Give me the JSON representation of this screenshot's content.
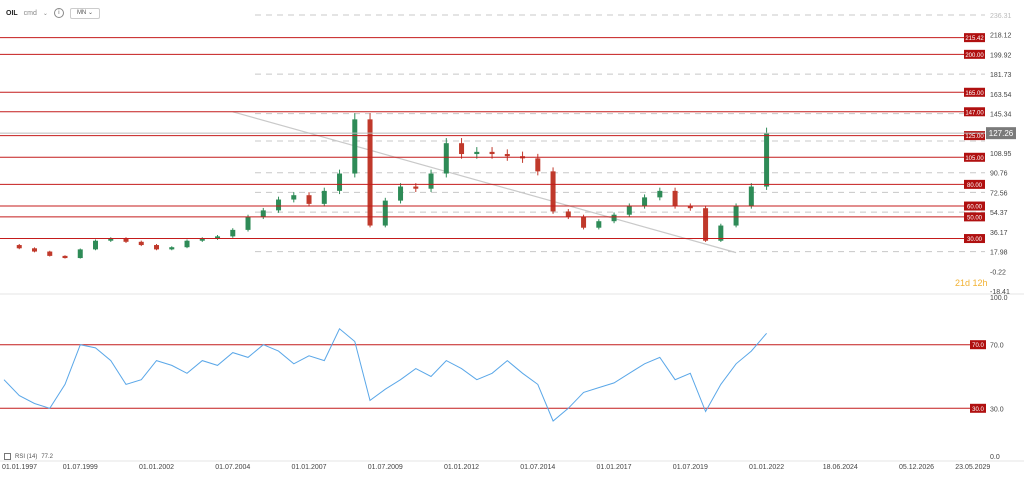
{
  "header": {
    "symbol": "OIL",
    "sub": "cmd",
    "chevron": "⌄",
    "info_icon": "i",
    "timeframe": "MN",
    "timeframe_chevron": "⌄"
  },
  "timer": {
    "days": "21d",
    "hours": "12h"
  },
  "rsi_label": {
    "name": "RSI (14)",
    "value": "77.2"
  },
  "colors": {
    "level_line": "#c41b1b",
    "level_tag_bg": "#b01010",
    "up_candle": "#2e8b57",
    "down_candle": "#c0392b",
    "rsi_line": "#5aa7e8",
    "grid_dash": "#c8c8c8",
    "trendline": "#c9c9c9",
    "price_badge_bg": "#7a7a7a"
  },
  "chart_data": [
    {
      "type": "candlestick",
      "title": "",
      "xlabel": "",
      "ylabel": "",
      "ylim": [
        -18.41,
        236.31
      ],
      "y_tick_labels": [
        "236.31",
        "218.12",
        "199.92",
        "181.73",
        "163.54",
        "145.34",
        "127.26",
        "108.95",
        "90.76",
        "72.56",
        "54.37",
        "36.17",
        "17.98",
        "-0.22",
        "-18.41"
      ],
      "x_tick_labels": [
        "01.01.1997",
        "01.07.1999",
        "01.01.2002",
        "01.07.2004",
        "01.01.2007",
        "01.07.2009",
        "01.01.2012",
        "01.07.2014",
        "01.01.2017",
        "01.07.2019",
        "01.01.2022",
        "18.06.2024",
        "05.12.2026",
        "23.05.2029"
      ],
      "current_price": "127.26",
      "levels": [
        {
          "value": 215.42,
          "label": "215.42"
        },
        {
          "value": 200.0,
          "label": "200.00"
        },
        {
          "value": 165.0,
          "label": "165.00"
        },
        {
          "value": 147.0,
          "label": "147.00"
        },
        {
          "value": 125.0,
          "label": "125.00"
        },
        {
          "value": 105.0,
          "label": "105.00"
        },
        {
          "value": 80.0,
          "label": "80.00"
        },
        {
          "value": 60.0,
          "label": "60.00"
        },
        {
          "value": 50.0,
          "label": "50.00"
        },
        {
          "value": 30.0,
          "label": "30.00"
        }
      ],
      "grid_dashed": [
        236.31,
        181.73,
        145.34,
        120.0,
        90.76,
        72.56,
        54.37,
        17.98
      ],
      "trendline": {
        "x": [
          "01.07.2004",
          "01.01.2021"
        ],
        "y": [
          147.0,
          17.0
        ]
      },
      "series": [
        {
          "x": [
            "1997",
            "1997.5",
            "1998",
            "1998.5",
            "1999",
            "1999.5",
            "2000",
            "2000.5",
            "2001",
            "2001.5",
            "2002",
            "2002.5",
            "2003",
            "2003.5",
            "2004",
            "2004.5",
            "2005",
            "2005.5",
            "2006",
            "2006.5",
            "2007",
            "2007.5",
            "2008",
            "2008.5",
            "2009",
            "2009.5",
            "2010",
            "2010.5",
            "2011",
            "2011.5",
            "2012",
            "2012.5",
            "2013",
            "2013.5",
            "2014",
            "2014.5",
            "2015",
            "2015.5",
            "2016",
            "2016.5",
            "2017",
            "2017.5",
            "2018",
            "2018.5",
            "2019",
            "2019.5",
            "2020",
            "2020.5",
            "2021",
            "2021.5",
            "2022"
          ],
          "values": [
            24,
            21,
            18,
            14,
            12,
            20,
            28,
            30,
            27,
            24,
            20,
            22,
            28,
            30,
            32,
            38,
            50,
            56,
            66,
            70,
            62,
            74,
            90,
            140,
            42,
            65,
            78,
            76,
            90,
            118,
            108,
            110,
            108,
            106,
            104,
            92,
            55,
            50,
            40,
            46,
            52,
            60,
            68,
            74,
            60,
            58,
            28,
            42,
            60,
            78,
            127.26
          ]
        }
      ]
    },
    {
      "type": "line",
      "title": "",
      "xlabel": "",
      "ylabel": "RSI (14)",
      "ylim": [
        0.0,
        100.0
      ],
      "y_tick_labels": [
        "100.0",
        "70.0",
        "30.0",
        "0.0"
      ],
      "levels": [
        {
          "value": 70.0,
          "label": "70.0"
        },
        {
          "value": 30.0,
          "label": "30.0"
        }
      ],
      "series": [
        {
          "name": "RSI (14)",
          "x": [
            "1997",
            "1997.5",
            "1998",
            "1998.5",
            "1999",
            "1999.5",
            "2000",
            "2000.5",
            "2001",
            "2001.5",
            "2002",
            "2002.5",
            "2003",
            "2003.5",
            "2004",
            "2004.5",
            "2005",
            "2005.5",
            "2006",
            "2006.5",
            "2007",
            "2007.5",
            "2008",
            "2008.5",
            "2009",
            "2009.5",
            "2010",
            "2010.5",
            "2011",
            "2011.5",
            "2012",
            "2012.5",
            "2013",
            "2013.5",
            "2014",
            "2014.5",
            "2015",
            "2015.5",
            "2016",
            "2016.5",
            "2017",
            "2017.5",
            "2018",
            "2018.5",
            "2019",
            "2019.5",
            "2020",
            "2020.5",
            "2021",
            "2021.5",
            "2022"
          ],
          "values": [
            48,
            38,
            33,
            30,
            45,
            70,
            68,
            60,
            45,
            48,
            60,
            57,
            52,
            60,
            57,
            65,
            62,
            70,
            66,
            58,
            63,
            60,
            80,
            72,
            35,
            42,
            48,
            55,
            50,
            60,
            55,
            48,
            52,
            60,
            52,
            45,
            22,
            30,
            40,
            43,
            46,
            52,
            58,
            62,
            48,
            52,
            28,
            45,
            58,
            66,
            77.2
          ]
        }
      ]
    }
  ]
}
